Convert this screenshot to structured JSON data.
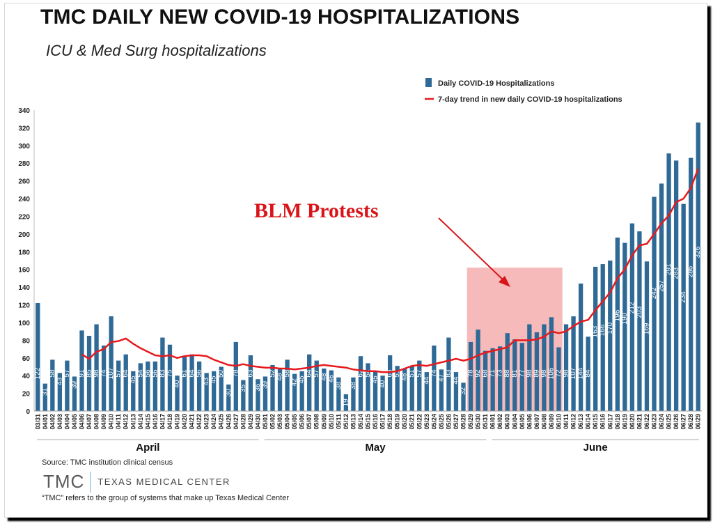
{
  "title": "TMC DAILY NEW COVID-19 HOSPITALIZATIONS",
  "subtitle": "ICU & Med Surg hospitalizations",
  "annotation": "BLM Protests",
  "source": "Source: TMC institution clinical census",
  "logo": {
    "mark": "TMC",
    "name": "TEXAS MEDICAL CENTER"
  },
  "footnote": "“TMC” refers to the group of systems that make up Texas Medical Center",
  "colors": {
    "bar": "#2f6a96",
    "trend": "#e8191c",
    "highlight": "#f3a3a3",
    "annotation": "#d8161a"
  },
  "chart_data": {
    "type": "bar",
    "ylim": [
      0,
      340
    ],
    "yticks": [
      0,
      20,
      40,
      60,
      80,
      100,
      120,
      140,
      160,
      180,
      200,
      220,
      240,
      260,
      280,
      300,
      320,
      340
    ],
    "months": [
      "April",
      "May",
      "June"
    ],
    "legend": [
      "Daily COVID-19 Hospitalizations",
      "7-day trend in new daily COVID-19 hospitalizations"
    ],
    "legend_position": "top-right",
    "highlight_range": [
      "05/29",
      "06/10"
    ],
    "categories": [
      "03/31",
      "04/01",
      "04/02",
      "04/03",
      "04/04",
      "04/05",
      "04/06",
      "04/07",
      "04/08",
      "04/09",
      "04/10",
      "04/11",
      "04/12",
      "04/13",
      "04/14",
      "04/15",
      "04/16",
      "04/17",
      "04/18",
      "04/19",
      "04/20",
      "04/21",
      "04/22",
      "04/23",
      "04/24",
      "04/25",
      "04/26",
      "04/27",
      "04/28",
      "04/29",
      "04/30",
      "05/01",
      "05/02",
      "05/03",
      "05/04",
      "05/05",
      "05/06",
      "05/07",
      "05/08",
      "05/09",
      "05/10",
      "05/11",
      "05/12",
      "05/13",
      "05/14",
      "05/15",
      "05/16",
      "05/17",
      "05/18",
      "05/19",
      "05/20",
      "05/21",
      "05/22",
      "05/23",
      "05/24",
      "05/25",
      "05/26",
      "05/27",
      "05/28",
      "05/29",
      "05/30",
      "05/31",
      "06/01",
      "06/02",
      "06/03",
      "06/04",
      "06/05",
      "06/06",
      "06/07",
      "06/08",
      "06/09",
      "06/10",
      "06/11",
      "06/12",
      "06/13",
      "06/14",
      "06/15",
      "06/16",
      "06/17",
      "06/18",
      "06/19",
      "06/20",
      "06/21",
      "06/22",
      "06/23",
      "06/24",
      "06/25",
      "06/26",
      "06/27",
      "06/28",
      "06/29"
    ],
    "series": [
      {
        "name": "Daily COVID-19 Hospitalizations",
        "values": [
          122,
          31,
          58,
          43,
          57,
          39,
          91,
          85,
          98,
          74,
          107,
          57,
          64,
          45,
          54,
          56,
          56,
          83,
          75,
          40,
          61,
          64,
          56,
          43,
          45,
          50,
          30,
          78,
          35,
          63,
          36,
          39,
          52,
          48,
          58,
          42,
          45,
          64,
          57,
          48,
          46,
          38,
          19,
          38,
          62,
          54,
          45,
          40,
          63,
          51,
          48,
          51,
          57,
          44,
          74,
          47,
          83,
          44,
          32,
          78,
          92,
          68,
          71,
          73,
          88,
          81,
          77,
          98,
          89,
          98,
          106,
          72,
          98,
          107,
          144,
          84,
          163,
          166,
          170,
          196,
          190,
          212,
          203,
          169,
          242,
          257,
          291,
          283,
          234,
          286,
          326
        ]
      },
      {
        "name": "7-day trend in new daily COVID-19 hospitalizations",
        "values": [
          null,
          null,
          null,
          null,
          null,
          null,
          64,
          59,
          67,
          70,
          78,
          79,
          82,
          76,
          71,
          67,
          63,
          62,
          63,
          60,
          62,
          63,
          63,
          62,
          58,
          55,
          52,
          51,
          53,
          51,
          50,
          49,
          49,
          48,
          48,
          47,
          48,
          49,
          51,
          52,
          51,
          50,
          49,
          47,
          46,
          45,
          45,
          44,
          44,
          45,
          48,
          51,
          52,
          51,
          53,
          55,
          57,
          59,
          57,
          59,
          63,
          66,
          68,
          70,
          72,
          80,
          80,
          80,
          81,
          84,
          90,
          88,
          90,
          96,
          101,
          103,
          114,
          124,
          134,
          150,
          160,
          176,
          187,
          189,
          200,
          212,
          221,
          236,
          240,
          252,
          274
        ]
      }
    ]
  }
}
